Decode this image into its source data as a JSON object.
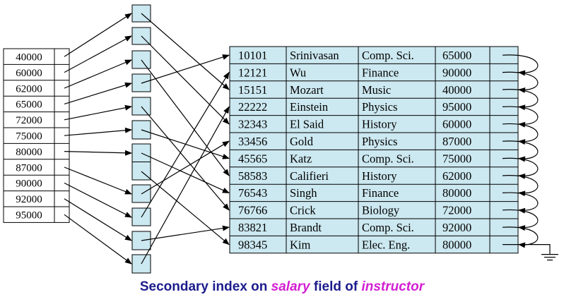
{
  "index_keys": [
    "40000",
    "60000",
    "62000",
    "65000",
    "72000",
    "75000",
    "80000",
    "87000",
    "90000",
    "92000",
    "95000"
  ],
  "instructor_records": [
    [
      "10101",
      "Srinivasan",
      "Comp. Sci.",
      "65000"
    ],
    [
      "12121",
      "Wu",
      "Finance",
      "90000"
    ],
    [
      "15151",
      "Mozart",
      "Music",
      "40000"
    ],
    [
      "22222",
      "Einstein",
      "Physics",
      "95000"
    ],
    [
      "32343",
      "El Said",
      "History",
      "60000"
    ],
    [
      "33456",
      "Gold",
      "Physics",
      "87000"
    ],
    [
      "45565",
      "Katz",
      "Comp. Sci.",
      "75000"
    ],
    [
      "58583",
      "Califieri",
      "History",
      "62000"
    ],
    [
      "76543",
      "Singh",
      "Finance",
      "80000"
    ],
    [
      "76766",
      "Crick",
      "Biology",
      "72000"
    ],
    [
      "83821",
      "Brandt",
      "Comp. Sci.",
      "92000"
    ],
    [
      "98345",
      "Kim",
      "Elec. Eng.",
      "80000"
    ]
  ],
  "caption": {
    "prefix": "Secondary index on ",
    "field": "salary",
    "middle": " field of ",
    "table": "instructor"
  },
  "colors": {
    "bucket_fill": "#cce8f0",
    "table_fill": "#cce8f0",
    "caption_text": "#1c1c8c",
    "caption_highlight": "#d21fd2"
  }
}
